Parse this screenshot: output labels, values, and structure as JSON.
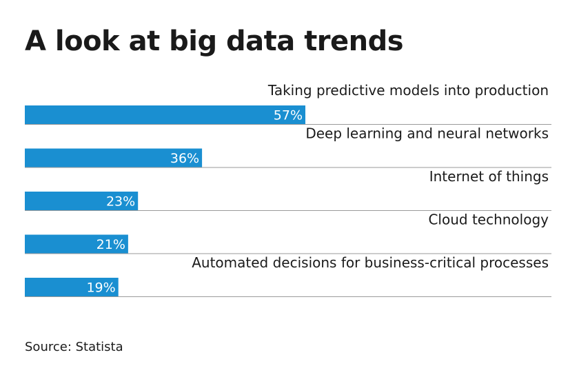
{
  "title": "A look at big data trends",
  "source": "Source: Statista",
  "colors": {
    "bar": "#1a8fd1",
    "bar_label": "#ffffff",
    "category_text": "#1a1a1a",
    "rule": "#9a9a9a"
  },
  "chart_data": {
    "type": "bar",
    "orientation": "horizontal",
    "title": "A look at big data trends",
    "categories": [
      "Taking predictive models into production",
      "Deep learning and neural networks",
      "Internet of things",
      "Cloud technology",
      "Automated decisions for business-critical processes"
    ],
    "values": [
      57,
      36,
      23,
      21,
      19
    ],
    "value_labels": [
      "57%",
      "36%",
      "23%",
      "21%",
      "19%"
    ],
    "unit": "%",
    "xlim": [
      0,
      100
    ],
    "grid": false,
    "legend": "none"
  }
}
